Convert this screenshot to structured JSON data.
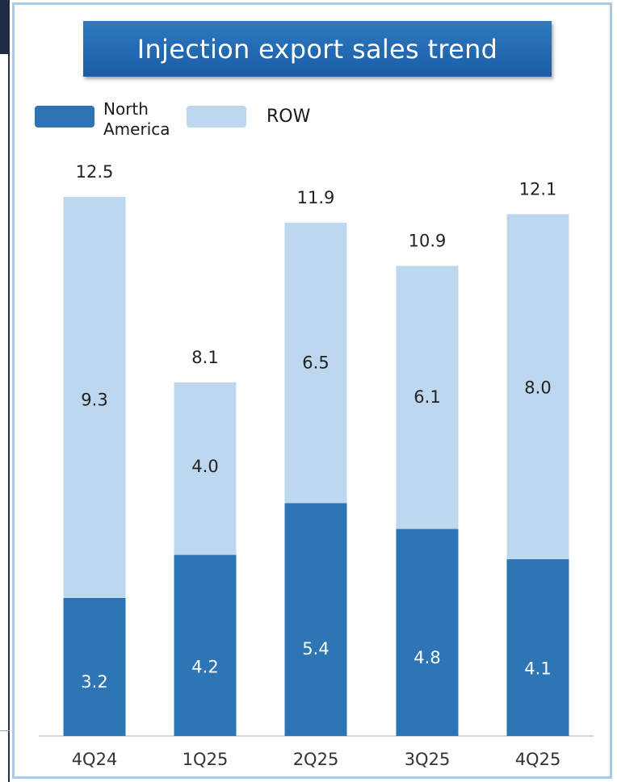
{
  "title": "Injection export sales trend",
  "legend": {
    "north_america": "North America",
    "north_america_line1": "North",
    "north_america_line2": "America",
    "row": "ROW"
  },
  "colors": {
    "north_america": "#2e75b6",
    "row": "#bdd7ee",
    "title_bg": "#2269b2",
    "panel_border": "#a9c9e8"
  },
  "chart_data": {
    "type": "bar",
    "stacked": true,
    "title": "Injection export sales trend",
    "categories": [
      "4Q24",
      "1Q25",
      "2Q25",
      "3Q25",
      "4Q25"
    ],
    "series": [
      {
        "name": "North America",
        "values": [
          3.2,
          4.2,
          5.4,
          4.8,
          4.1
        ]
      },
      {
        "name": "ROW",
        "values": [
          9.3,
          4.0,
          6.5,
          6.1,
          8.0
        ]
      }
    ],
    "totals": [
      12.5,
      8.1,
      11.9,
      10.9,
      12.1
    ],
    "segment_labels": {
      "North America": [
        "3.2",
        "4.2",
        "5.4",
        "4.8",
        "4.1"
      ],
      "ROW": [
        "9.3",
        "4.0",
        "6.5",
        "6.1",
        "8.0"
      ]
    },
    "total_labels": [
      "12.5",
      "8.1",
      "11.9",
      "10.9",
      "12.1"
    ],
    "ylim": [
      0,
      12.5
    ],
    "legend_position": "top-left",
    "grid": false
  }
}
